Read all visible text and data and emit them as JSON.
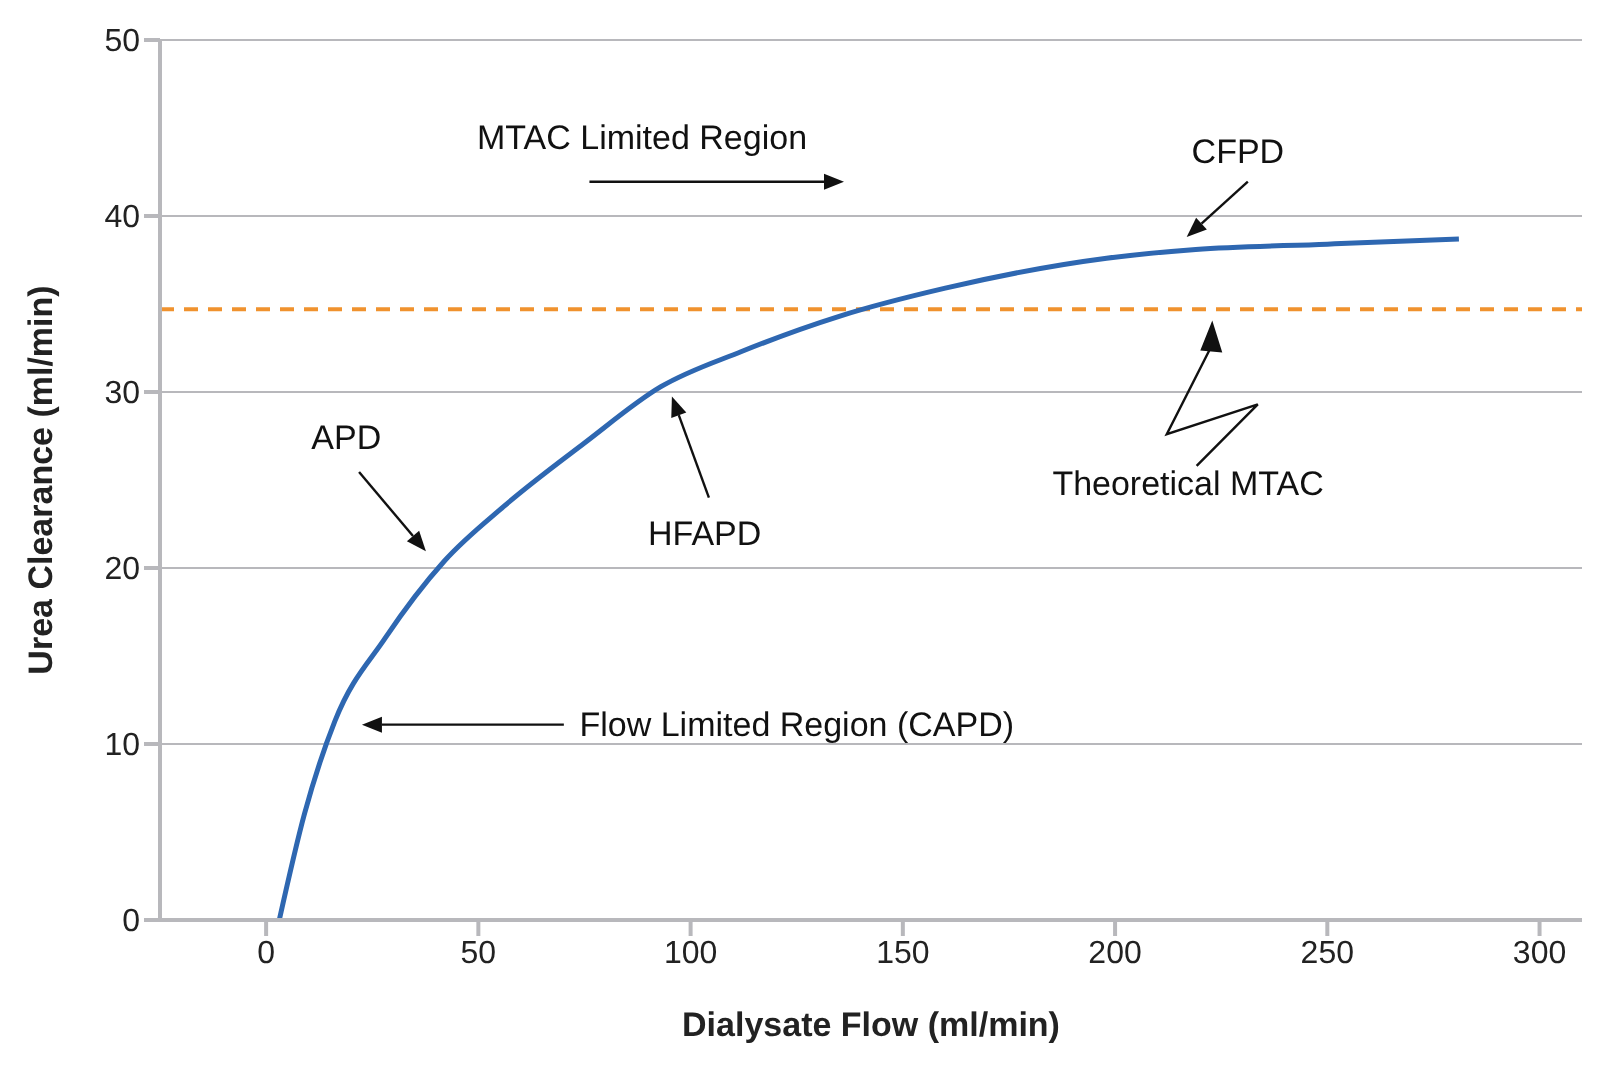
{
  "chart_data": {
    "type": "line",
    "xlabel": "Dialysate Flow (ml/min)",
    "ylabel": "Urea Clearance (ml/min)",
    "x": [
      3.1,
      9,
      16.2,
      28,
      42,
      56,
      75,
      93,
      112,
      135,
      160,
      198,
      219,
      250,
      281
    ],
    "series": [
      {
        "color": "#2e67b1",
        "values": [
          0,
          6,
          11.3,
          16,
          20.4,
          23.5,
          27.1,
          30.3,
          32.3,
          34.3,
          35.9,
          37.6,
          38.1,
          38.4,
          38.7
        ]
      }
    ],
    "xlim": [
      -25,
      310
    ],
    "ylim": [
      0,
      50
    ],
    "xticks": [
      0,
      50,
      100,
      150,
      200,
      250,
      300
    ],
    "yticks": [
      0,
      10,
      20,
      30,
      40,
      50
    ],
    "grid": "y",
    "marker": "none",
    "line_style": "solid",
    "ref_lines": [
      {
        "axis": "y",
        "value": 34.7,
        "color": "#f0922e",
        "line_style": "dashed"
      }
    ],
    "annotations": [
      "MTAC Limited Region",
      "APD",
      "HFAPD",
      "CFPD",
      "Flow Limited Region (CAPD)",
      "Theoretical MTAC"
    ]
  }
}
